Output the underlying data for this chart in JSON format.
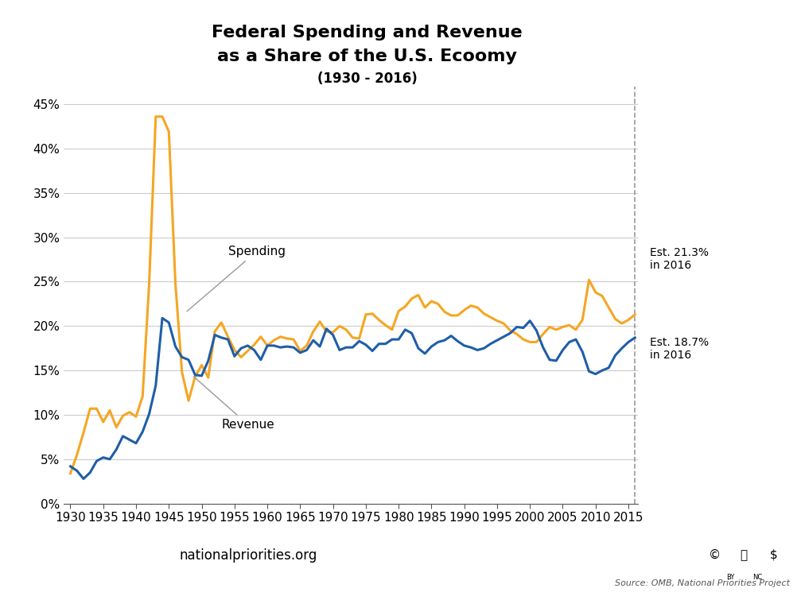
{
  "title_line1": "Federal Spending and Revenue",
  "title_line2": "as a Share of the U.S. Ecoomy",
  "title_line3": "(1930 - 2016)",
  "spending_color": "#F5A623",
  "revenue_color": "#1F5EA8",
  "background_color": "#FFFFFF",
  "years": [
    1930,
    1931,
    1932,
    1933,
    1934,
    1935,
    1936,
    1937,
    1938,
    1939,
    1940,
    1941,
    1942,
    1943,
    1944,
    1945,
    1946,
    1947,
    1948,
    1949,
    1950,
    1951,
    1952,
    1953,
    1954,
    1955,
    1956,
    1957,
    1958,
    1959,
    1960,
    1961,
    1962,
    1963,
    1964,
    1965,
    1966,
    1967,
    1968,
    1969,
    1970,
    1971,
    1972,
    1973,
    1974,
    1975,
    1976,
    1977,
    1978,
    1979,
    1980,
    1981,
    1982,
    1983,
    1984,
    1985,
    1986,
    1987,
    1988,
    1989,
    1990,
    1991,
    1992,
    1993,
    1994,
    1995,
    1996,
    1997,
    1998,
    1999,
    2000,
    2001,
    2002,
    2003,
    2004,
    2005,
    2006,
    2007,
    2008,
    2009,
    2010,
    2011,
    2012,
    2013,
    2014,
    2015,
    2016
  ],
  "spending": [
    3.4,
    5.5,
    8.0,
    10.7,
    10.7,
    9.2,
    10.5,
    8.6,
    9.9,
    10.3,
    9.8,
    12.1,
    24.8,
    43.6,
    43.6,
    41.9,
    24.8,
    14.8,
    11.6,
    14.3,
    15.6,
    14.2,
    19.4,
    20.4,
    18.8,
    17.3,
    16.5,
    17.2,
    17.9,
    18.8,
    17.8,
    18.4,
    18.8,
    18.6,
    18.5,
    17.2,
    17.8,
    19.4,
    20.5,
    19.4,
    19.3,
    20.0,
    19.6,
    18.7,
    18.6,
    21.3,
    21.4,
    20.7,
    20.1,
    19.6,
    21.7,
    22.2,
    23.1,
    23.5,
    22.1,
    22.8,
    22.5,
    21.6,
    21.2,
    21.2,
    21.8,
    22.3,
    22.1,
    21.4,
    21.0,
    20.6,
    20.3,
    19.5,
    19.1,
    18.5,
    18.2,
    18.2,
    19.1,
    19.9,
    19.6,
    19.9,
    20.1,
    19.6,
    20.7,
    25.2,
    23.8,
    23.4,
    22.1,
    20.8,
    20.3,
    20.7,
    21.3
  ],
  "revenue": [
    4.2,
    3.7,
    2.8,
    3.5,
    4.8,
    5.2,
    5.0,
    6.1,
    7.6,
    7.2,
    6.8,
    8.1,
    10.1,
    13.3,
    20.9,
    20.4,
    17.7,
    16.5,
    16.2,
    14.5,
    14.4,
    16.1,
    19.0,
    18.7,
    18.5,
    16.6,
    17.5,
    17.8,
    17.3,
    16.2,
    17.8,
    17.8,
    17.6,
    17.7,
    17.6,
    17.0,
    17.3,
    18.4,
    17.7,
    19.7,
    19.0,
    17.3,
    17.6,
    17.6,
    18.3,
    17.9,
    17.2,
    18.0,
    18.0,
    18.5,
    18.5,
    19.6,
    19.2,
    17.5,
    16.9,
    17.7,
    18.2,
    18.4,
    18.9,
    18.3,
    17.8,
    17.6,
    17.3,
    17.5,
    18.0,
    18.4,
    18.8,
    19.2,
    19.9,
    19.8,
    20.6,
    19.5,
    17.6,
    16.2,
    16.1,
    17.3,
    18.2,
    18.5,
    17.1,
    14.9,
    14.6,
    15.0,
    15.3,
    16.7,
    17.5,
    18.2,
    18.7
  ],
  "ylim": [
    0,
    47
  ],
  "yticks": [
    0,
    5,
    10,
    15,
    20,
    25,
    30,
    35,
    40,
    45
  ],
  "xlim": [
    1929,
    2016.5
  ],
  "xticks": [
    1930,
    1935,
    1940,
    1945,
    1950,
    1955,
    1960,
    1965,
    1970,
    1975,
    1980,
    1985,
    1990,
    1995,
    2000,
    2005,
    2010,
    2015
  ],
  "spending_2016_label": "Est. 21.3%\nin 2016",
  "revenue_2016_label": "Est. 18.7%\nin 2016",
  "spending_label": "Spending",
  "revenue_label": "Revenue",
  "source_text": "Source: OMB, National Priorities Project",
  "website_text": "nationalpriorities.org",
  "footer_bg_color": "#2D8A57",
  "footer_line_color": "#5BBD8A"
}
